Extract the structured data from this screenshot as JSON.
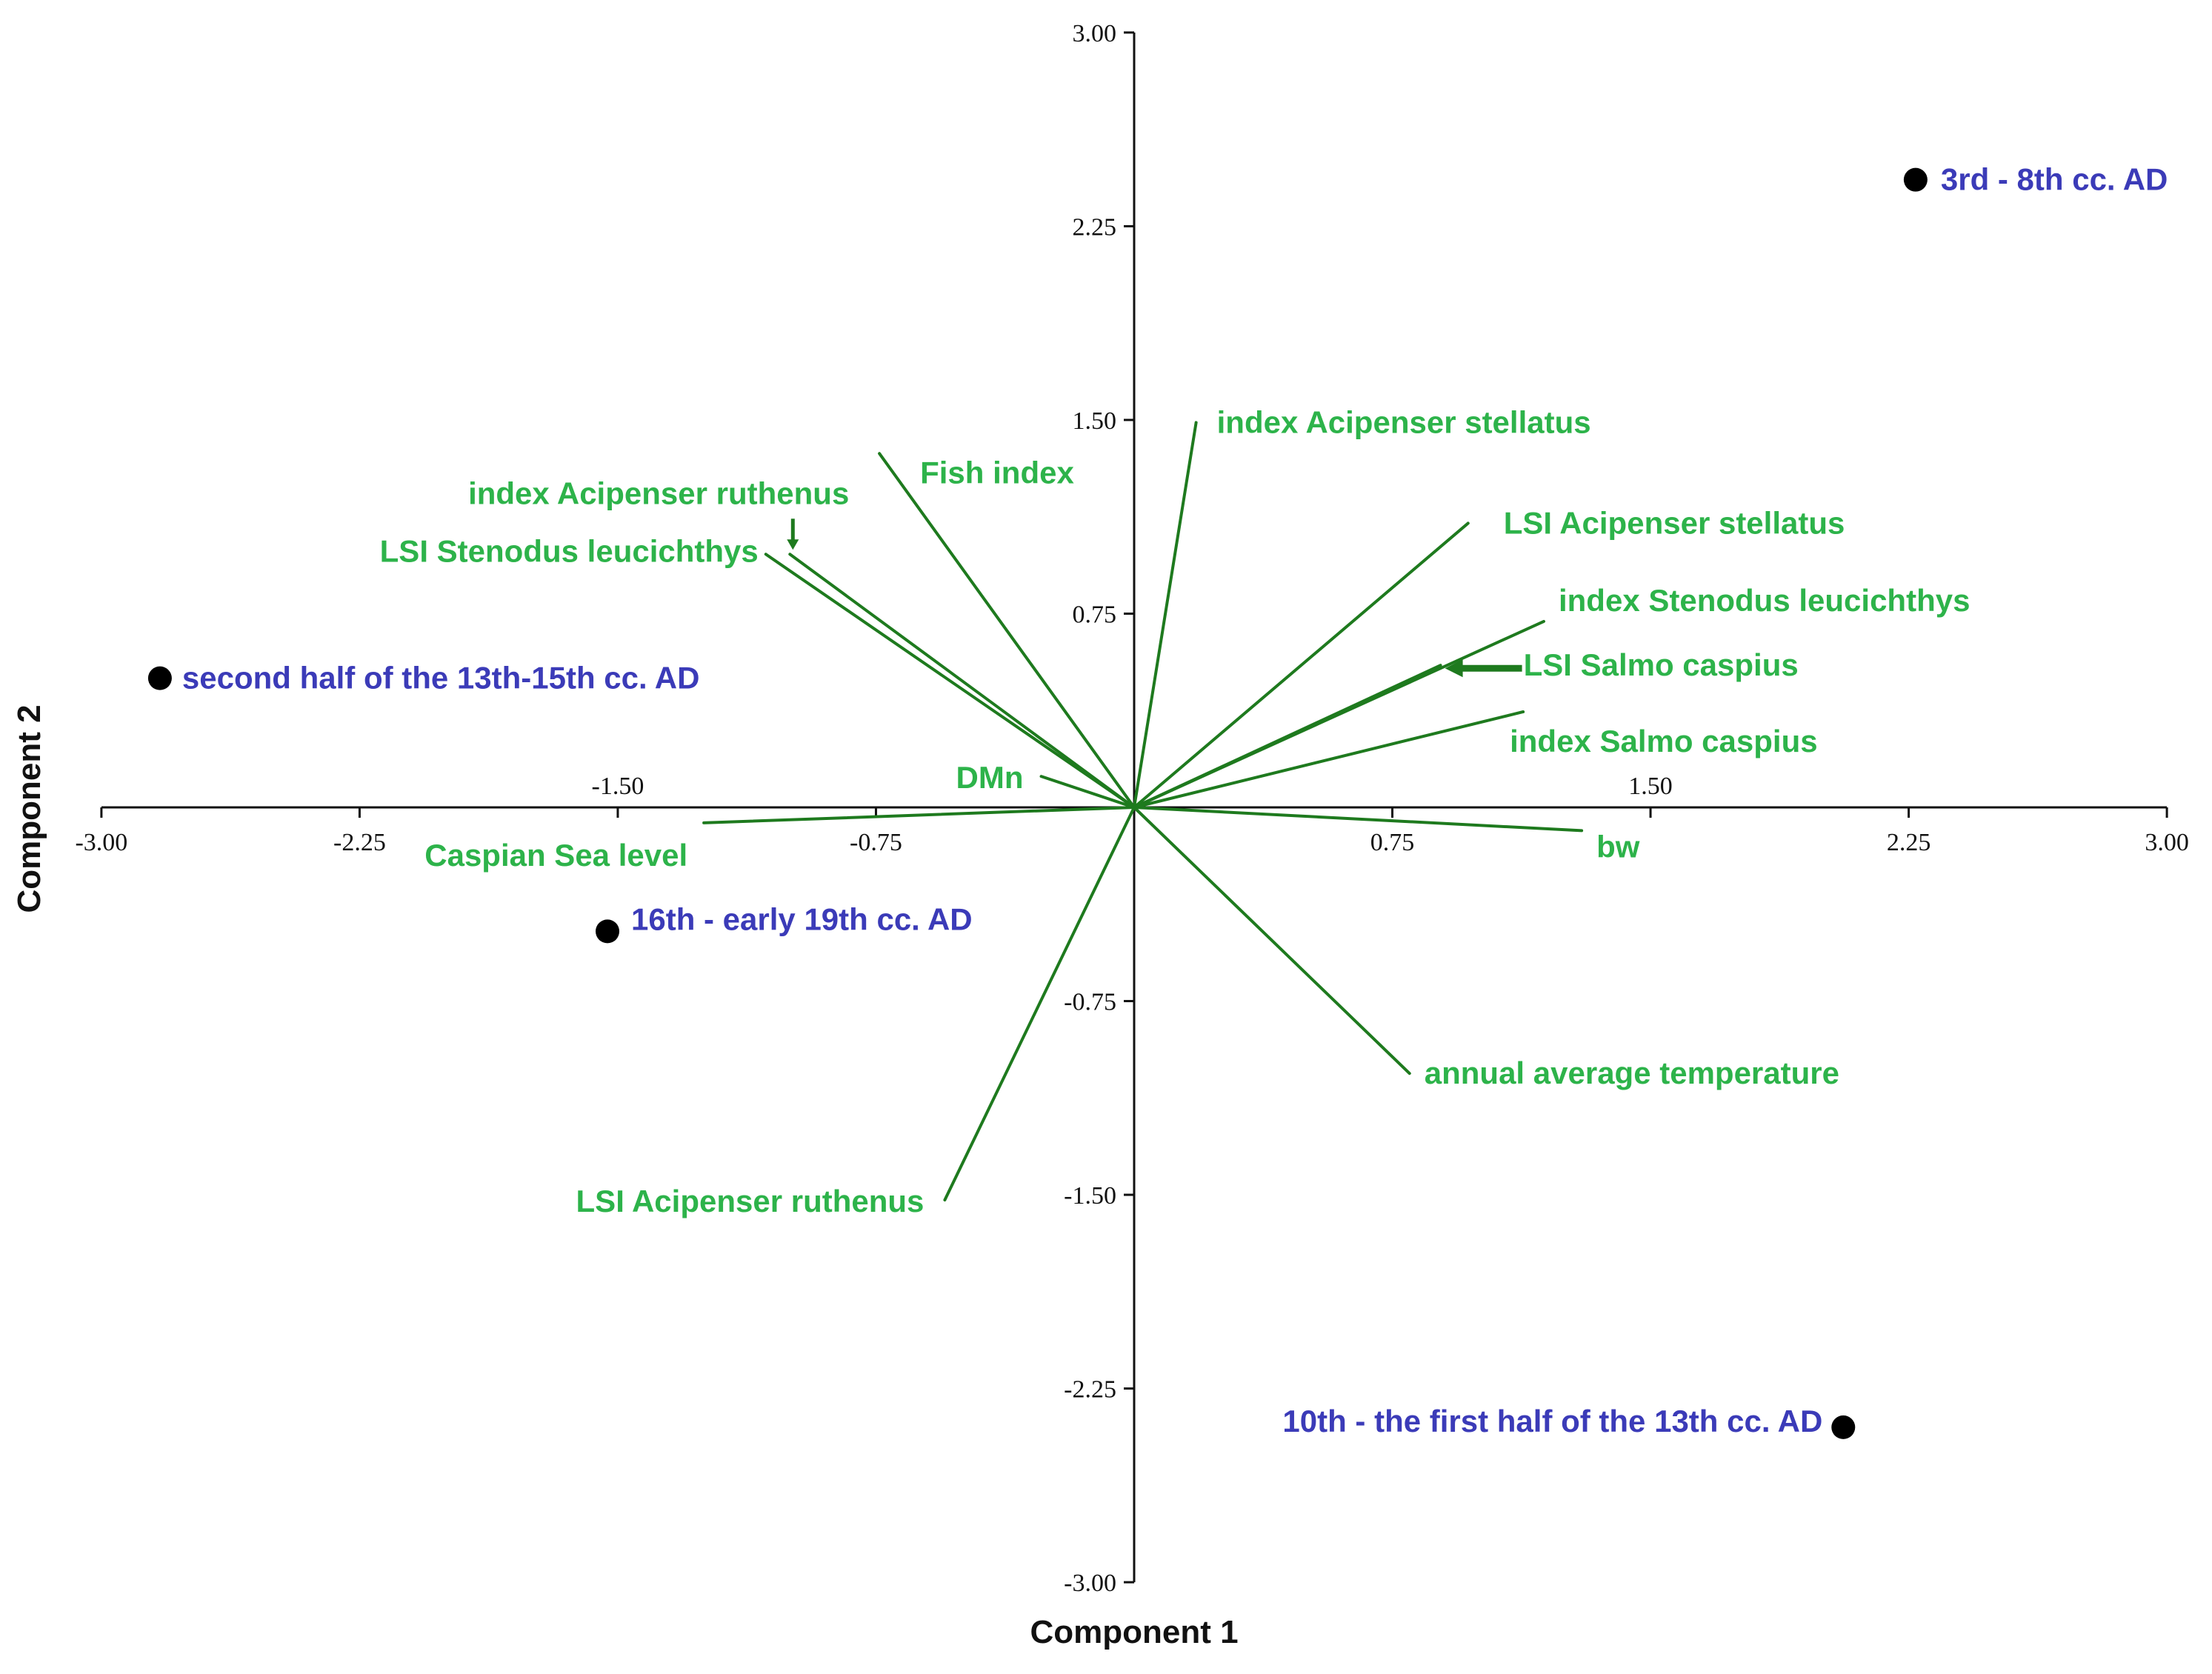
{
  "chart_data": {
    "type": "scatter",
    "subtype": "biplot",
    "title": "",
    "xlabel": "Component 1",
    "ylabel": "Component 2",
    "xlim": [
      -3.0,
      3.0
    ],
    "ylim": [
      -3.0,
      3.0
    ],
    "x_ticks": [
      "-3.00",
      "-2.25",
      "-1.50",
      "-0.75",
      "0.75",
      "1.50",
      "2.25",
      "3.00"
    ],
    "x_tick_values": [
      -3.0,
      -2.25,
      -1.5,
      -0.75,
      0.75,
      1.5,
      2.25,
      3.0
    ],
    "y_ticks": [
      "3.00",
      "2.25",
      "1.50",
      "0.75",
      "-0.75",
      "-1.50",
      "-2.25",
      "-3.00"
    ],
    "y_tick_values": [
      3.0,
      2.25,
      1.5,
      0.75,
      -0.75,
      -1.5,
      -2.25,
      -3.0
    ],
    "grid": false,
    "legend": "none",
    "colors": {
      "variables": "#1e7a1e",
      "variable_labels": "#2db34a",
      "observations": "#000000",
      "observation_labels": "#3b3bb8",
      "axes": "#111111"
    },
    "loadings": [
      {
        "name": "index Acipenser stellatus",
        "x": 0.18,
        "y": 1.49
      },
      {
        "name": "Fish index",
        "x": -0.74,
        "y": 1.37
      },
      {
        "name": "index Acipenser ruthenus",
        "x": -1.0,
        "y": 0.98
      },
      {
        "name": "LSI Stenodus leucichthys",
        "x": -1.07,
        "y": 0.98
      },
      {
        "name": "LSI Acipenser stellatus",
        "x": 0.97,
        "y": 1.1
      },
      {
        "name": "index Stenodus leucichthys",
        "x": 1.19,
        "y": 0.72
      },
      {
        "name": "LSI Salmo caspius",
        "x": 0.89,
        "y": 0.55
      },
      {
        "name": "index Salmo caspius",
        "x": 1.13,
        "y": 0.37
      },
      {
        "name": "DMn",
        "x": -0.27,
        "y": 0.12
      },
      {
        "name": "Caspian Sea level",
        "x": -1.25,
        "y": -0.06
      },
      {
        "name": "bw",
        "x": 1.3,
        "y": -0.09
      },
      {
        "name": "annual average temperature",
        "x": 0.8,
        "y": -1.03
      },
      {
        "name": "LSI Acipenser ruthenus",
        "x": -0.55,
        "y": -1.52
      }
    ],
    "scores": [
      {
        "name": "3rd - 8th cc. AD",
        "x": 2.27,
        "y": 2.43
      },
      {
        "name": "second half of the 13th-15th cc. AD",
        "x": -2.83,
        "y": 0.5
      },
      {
        "name": "16th - early 19th cc. AD",
        "x": -1.53,
        "y": -0.48
      },
      {
        "name": "10th - the first half of the 13th cc. AD",
        "x": 2.06,
        "y": -2.4
      }
    ]
  }
}
